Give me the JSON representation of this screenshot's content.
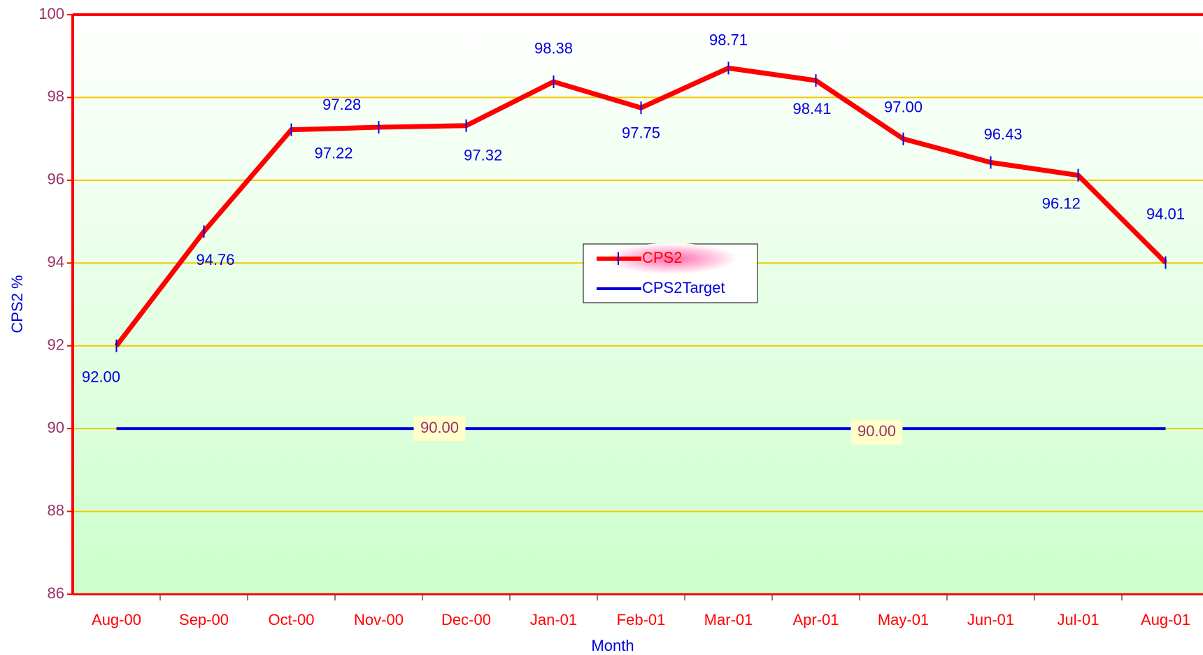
{
  "chart_data": {
    "type": "line",
    "x_label": "Month",
    "y_label": "CPS2  %",
    "categories": [
      "Aug-00",
      "Sep-00",
      "Oct-00",
      "Nov-00",
      "Dec-00",
      "Jan-01",
      "Feb-01",
      "Mar-01",
      "Apr-01",
      "May-01",
      "Jun-01",
      "Jul-01",
      "Aug-01"
    ],
    "series": [
      {
        "name": "CPS2",
        "color": "#ff0000",
        "values": [
          92.0,
          94.76,
          97.22,
          97.28,
          97.32,
          98.38,
          97.75,
          98.71,
          98.41,
          97.0,
          96.43,
          96.12,
          94.01
        ],
        "value_labels": [
          "92.00",
          "94.76",
          "97.22",
          "97.28",
          "97.32",
          "98.38",
          "97.75",
          "98.71",
          "98.41",
          "97.00",
          "96.43",
          "96.12",
          "94.01"
        ]
      },
      {
        "name": "CPS2Target",
        "color": "#0000dd",
        "values": [
          90,
          90,
          90,
          90,
          90,
          90,
          90,
          90,
          90,
          90,
          90,
          90,
          90
        ],
        "value_labels": [
          null,
          null,
          null,
          null,
          "90.00",
          null,
          null,
          null,
          null,
          "90.00",
          null,
          null,
          null
        ]
      }
    ],
    "ylim": [
      86,
      100
    ],
    "yticks": [
      86,
      88,
      90,
      92,
      94,
      96,
      98,
      100
    ],
    "grid": true
  }
}
